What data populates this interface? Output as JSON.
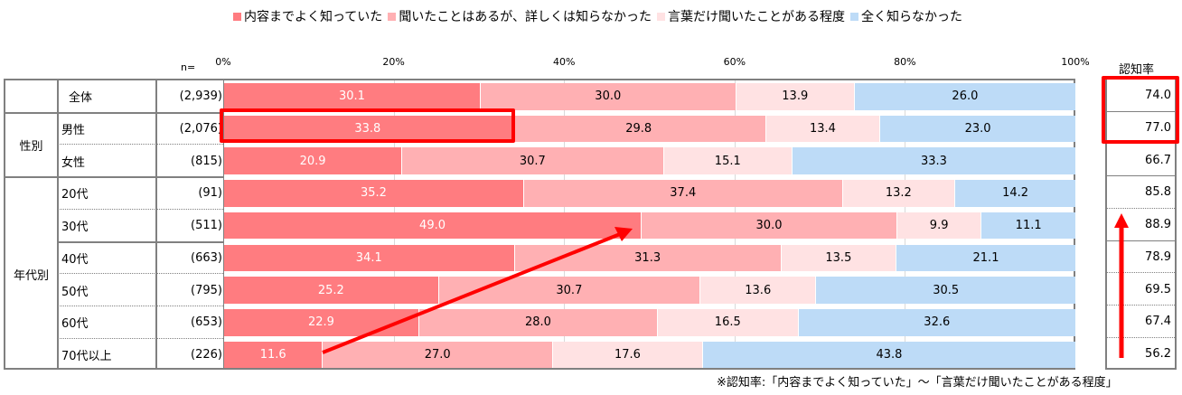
{
  "chart_data": {
    "type": "bar",
    "stacked": true,
    "orientation": "horizontal",
    "legend_position": "top",
    "n_label": "n=",
    "rate_header": "認知率",
    "xticks": [
      "0%",
      "20%",
      "40%",
      "60%",
      "80%",
      "100%"
    ],
    "xlim": [
      0,
      100
    ],
    "series": [
      {
        "name": "内容までよく知っていた",
        "color": "#FF7C80"
      },
      {
        "name": "聞いたことはあるが、詳しくは知らなかった",
        "color": "#FFB0B3"
      },
      {
        "name": "言葉だけ聞いたことがある程度",
        "color": "#FFE2E3"
      },
      {
        "name": "全く知らなかった",
        "color": "#BDDBF7"
      }
    ],
    "groups": [
      {
        "label": "性別",
        "rows": [
          1,
          2
        ]
      },
      {
        "label": "年代別",
        "rows": [
          3,
          8
        ]
      }
    ],
    "rows": [
      {
        "label": "全体",
        "n": "(2,939)",
        "values": [
          30.1,
          30.0,
          13.9,
          26.0
        ],
        "rate": "74.0"
      },
      {
        "label": "男性",
        "n": "(2,076)",
        "values": [
          33.8,
          29.8,
          13.4,
          23.0
        ],
        "rate": "77.0"
      },
      {
        "label": "女性",
        "n": "(815)",
        "values": [
          20.9,
          30.7,
          15.1,
          33.3
        ],
        "rate": "66.7"
      },
      {
        "label": "20代",
        "n": "(91)",
        "values": [
          35.2,
          37.4,
          13.2,
          14.2
        ],
        "rate": "85.8"
      },
      {
        "label": "30代",
        "n": "(511)",
        "values": [
          49.0,
          30.0,
          9.9,
          11.1
        ],
        "rate": "88.9"
      },
      {
        "label": "40代",
        "n": "(663)",
        "values": [
          34.1,
          31.3,
          13.5,
          21.1
        ],
        "rate": "78.9"
      },
      {
        "label": "50代",
        "n": "(795)",
        "values": [
          25.2,
          30.7,
          13.6,
          30.5
        ],
        "rate": "69.5"
      },
      {
        "label": "60代",
        "n": "(653)",
        "values": [
          22.9,
          28.0,
          16.5,
          32.6
        ],
        "rate": "67.4"
      },
      {
        "label": "70代以上",
        "n": "(226)",
        "values": [
          11.6,
          27.0,
          17.6,
          43.8
        ],
        "rate": "56.2"
      }
    ],
    "footnote": "※認知率:「内容までよく知っていた」～「言葉だけ聞いたことがある程度」"
  },
  "highlight_color": "#FF0000"
}
